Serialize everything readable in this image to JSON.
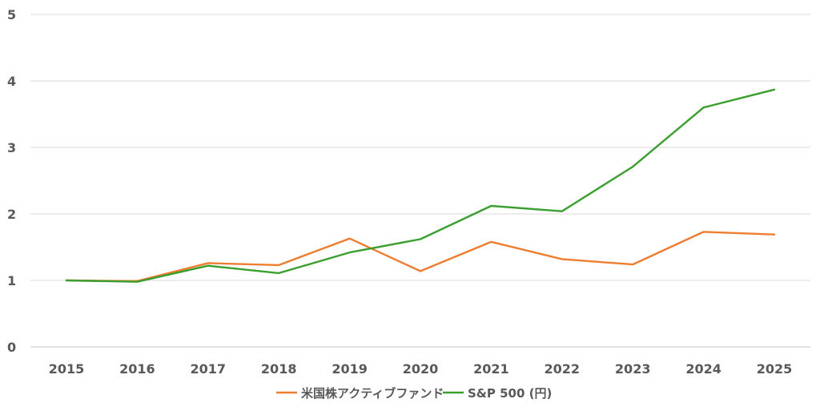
{
  "chart_data": {
    "type": "line",
    "categories": [
      "2015",
      "2016",
      "2017",
      "2018",
      "2019",
      "2020",
      "2021",
      "2022",
      "2023",
      "2024",
      "2025"
    ],
    "series": [
      {
        "name": "米国株アクティブファンド",
        "color": "#ED7D31",
        "values": [
          1.0,
          0.99,
          1.26,
          1.23,
          1.63,
          1.14,
          1.58,
          1.32,
          1.24,
          1.73,
          1.69
        ]
      },
      {
        "name": "S&P 500 (円)",
        "color": "#3A9F2F",
        "values": [
          1.0,
          0.98,
          1.22,
          1.11,
          1.42,
          1.62,
          2.12,
          2.04,
          2.71,
          3.6,
          3.87
        ]
      }
    ],
    "yticks": [
      "0",
      "1",
      "2",
      "3",
      "4",
      "5"
    ],
    "ylim": [
      0,
      5
    ],
    "grid": true,
    "legend_position": "bottom"
  }
}
